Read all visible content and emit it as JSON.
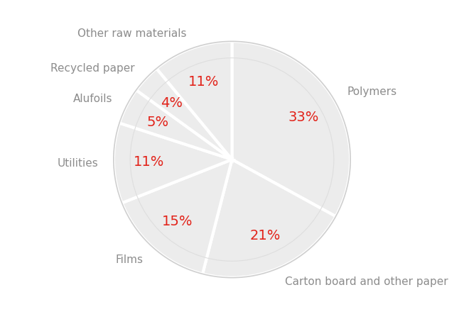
{
  "chart_data": {
    "type": "pie",
    "categories": [
      "Polymers",
      "Carton board and other paper",
      "Films",
      "Utilities",
      "Alufoils",
      "Recycled paper",
      "Other raw materials"
    ],
    "values": [
      33,
      21,
      15,
      11,
      5,
      4,
      11
    ],
    "value_labels": [
      "33%",
      "21%",
      "15%",
      "11%",
      "5%",
      "4%",
      "11%"
    ],
    "data_labels": true,
    "color": "#ececec"
  }
}
